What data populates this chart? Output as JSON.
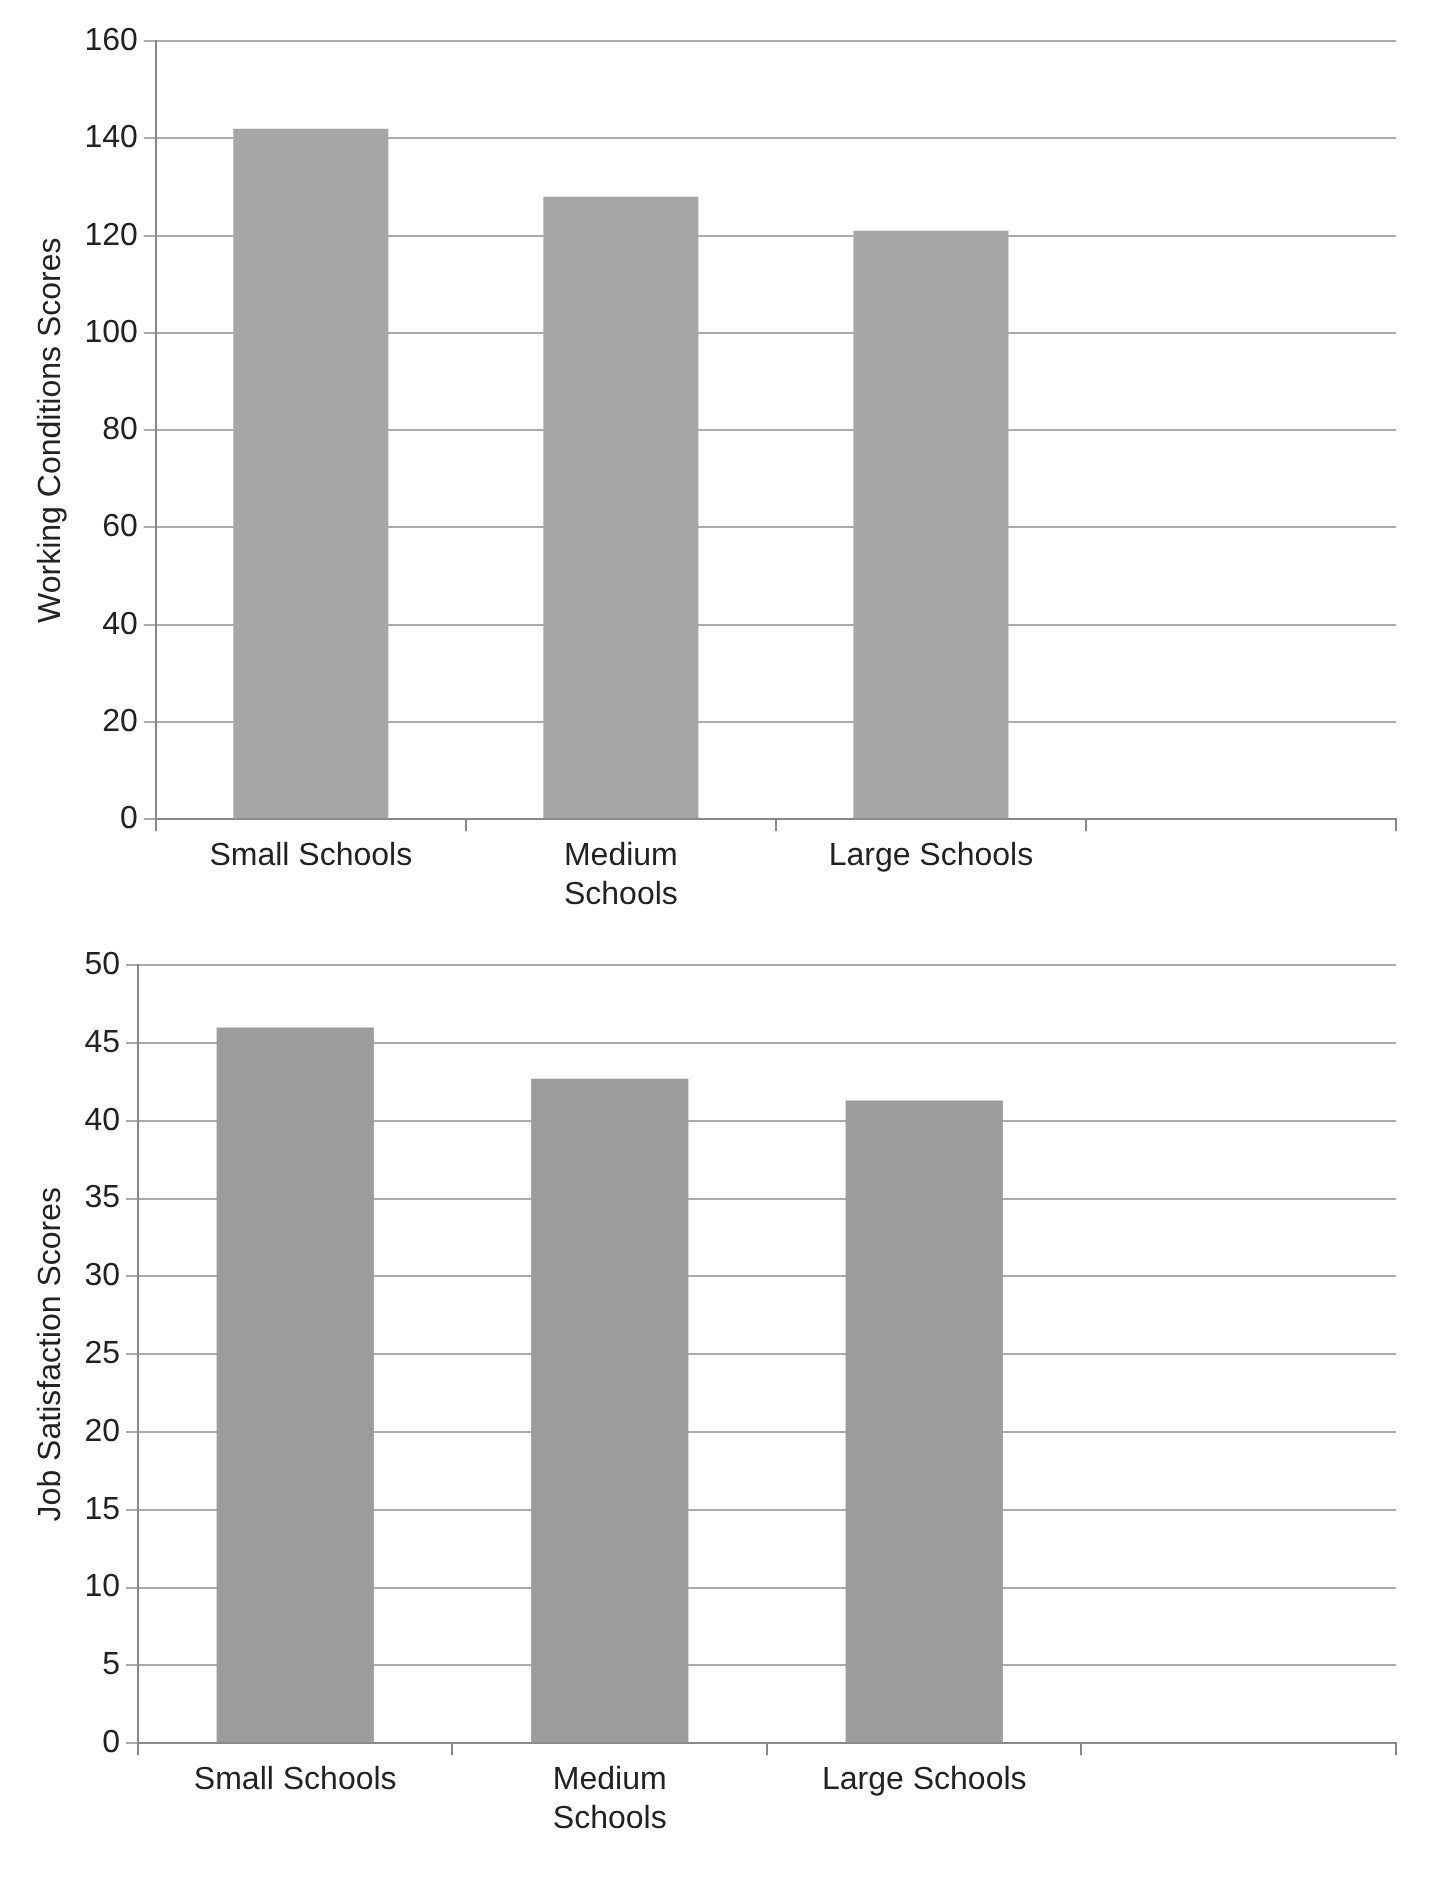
{
  "chart_data": [
    {
      "type": "bar",
      "ylabel": "Working Conditions Scores",
      "categories": [
        "Small Schools",
        "Medium Schools",
        "Large Schools",
        null
      ],
      "values": [
        142,
        128,
        121,
        null
      ],
      "color": "#a6a6a6",
      "ylim": [
        0,
        160
      ],
      "yticks": [
        0,
        20,
        40,
        60,
        80,
        100,
        120,
        140,
        160
      ],
      "grid": "y",
      "legend": false
    },
    {
      "type": "bar",
      "ylabel": "Job Satisfaction Scores",
      "categories": [
        "Small Schools",
        "Medium Schools",
        "Large Schools",
        null
      ],
      "values": [
        46,
        42.7,
        41.3,
        null
      ],
      "color": "#9c9c9c",
      "ylim": [
        0,
        50
      ],
      "yticks": [
        0,
        5,
        10,
        15,
        20,
        25,
        30,
        35,
        40,
        45,
        50
      ],
      "grid": "y",
      "legend": false
    }
  ]
}
